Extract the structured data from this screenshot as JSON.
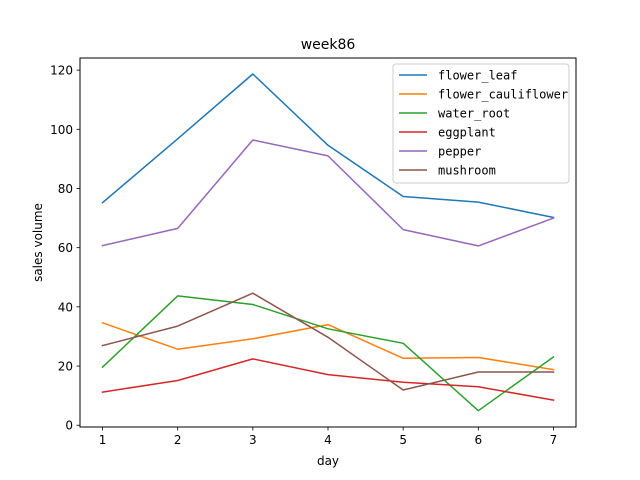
{
  "chart_data": {
    "type": "line",
    "title": "week86",
    "xlabel": "day",
    "ylabel": "sales volume",
    "x": [
      1,
      2,
      3,
      4,
      5,
      6,
      7
    ],
    "xlim": [
      0.7,
      7.3
    ],
    "ylim": [
      -0.6,
      124.1
    ],
    "xticks": [
      1,
      2,
      3,
      4,
      5,
      6,
      7
    ],
    "yticks": [
      0,
      20,
      40,
      60,
      80,
      100,
      120
    ],
    "grid": false,
    "legend_position": "top-right",
    "series": [
      {
        "name": "flower_leaf",
        "color": "#1f77b4",
        "values": [
          75.2,
          96.8,
          118.7,
          94.6,
          77.3,
          75.4,
          70.2
        ]
      },
      {
        "name": "flower_cauliflower",
        "color": "#ff7f0e",
        "values": [
          34.6,
          25.7,
          29.2,
          34.0,
          22.6,
          22.9,
          18.8
        ]
      },
      {
        "name": "water_root",
        "color": "#2ca02c",
        "values": [
          19.6,
          43.7,
          40.8,
          32.6,
          27.7,
          4.9,
          23.1
        ]
      },
      {
        "name": "eggplant",
        "color": "#d62728",
        "values": [
          11.2,
          15.1,
          22.4,
          17.1,
          14.5,
          13.0,
          8.5
        ]
      },
      {
        "name": "pepper",
        "color": "#9467bd",
        "values": [
          60.7,
          66.5,
          96.4,
          91.0,
          66.1,
          60.6,
          70.0
        ]
      },
      {
        "name": "mushroom",
        "color": "#8c564b",
        "values": [
          26.9,
          33.5,
          44.6,
          29.7,
          11.9,
          18.0,
          18.0
        ]
      }
    ]
  }
}
